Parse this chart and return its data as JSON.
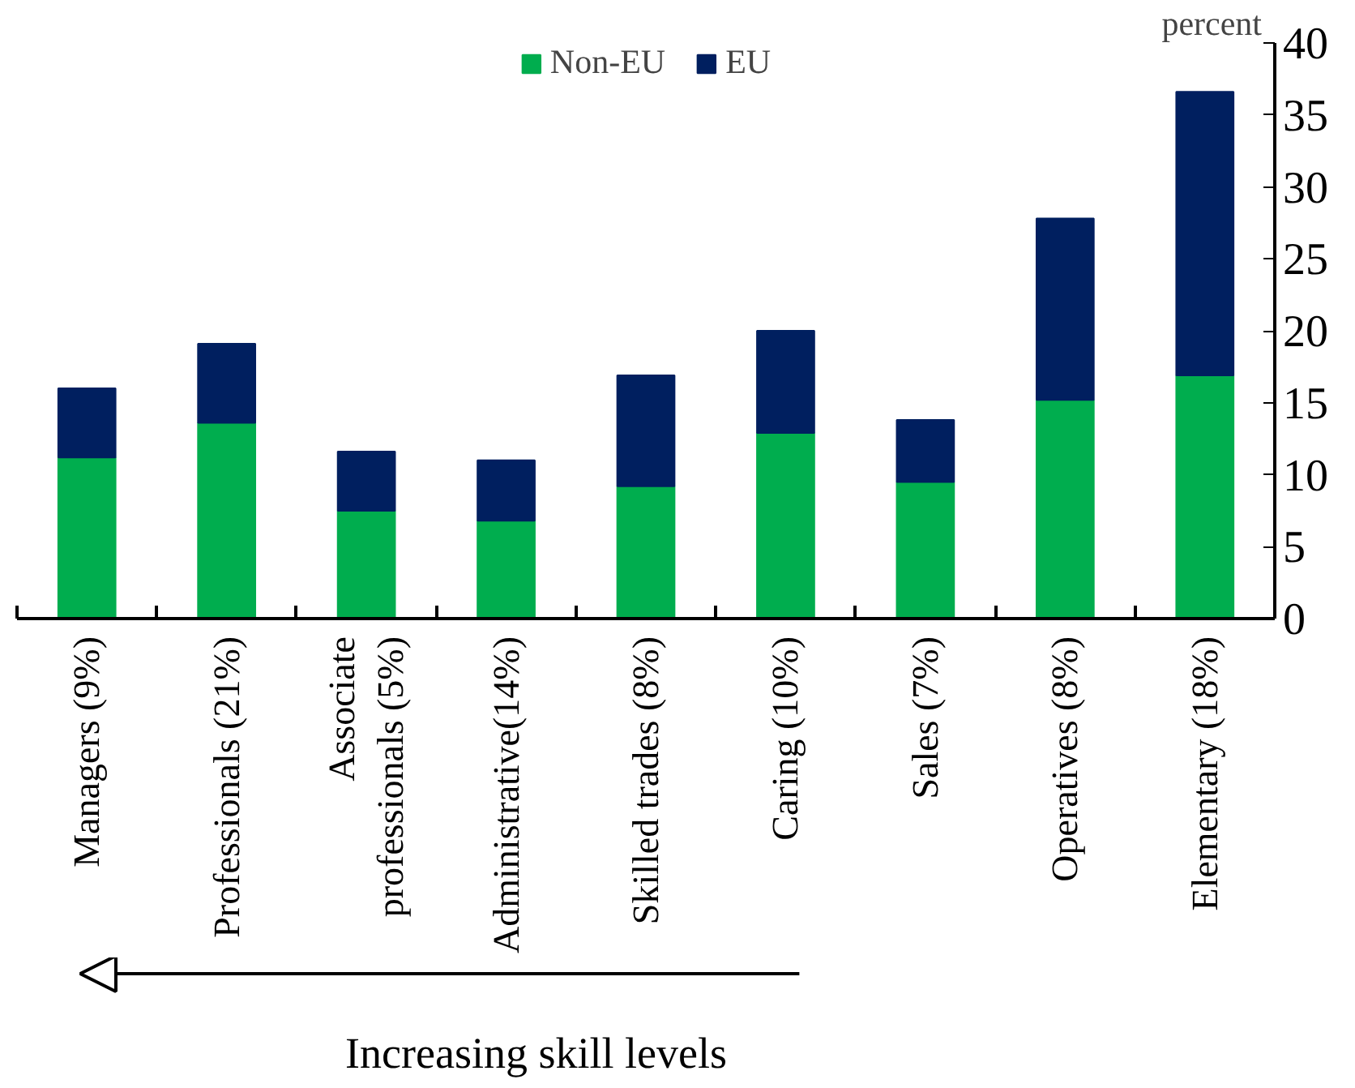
{
  "chart_data": {
    "type": "bar",
    "stacked": true,
    "categories": [
      "Managers (9%)",
      "Professionals (21%)",
      "Associate professionals (5%)",
      "Administrative(14%)",
      "Skilled trades (8%)",
      "Caring (10%)",
      "Sales (7%)",
      "Operatives (8%)",
      "Elementary (18%)"
    ],
    "series": [
      {
        "name": "Non-EU",
        "color": "#00ad4e",
        "values": [
          11.2,
          13.6,
          7.5,
          6.8,
          9.2,
          12.9,
          9.5,
          15.2,
          16.9
        ]
      },
      {
        "name": "EU",
        "color": "#001f5f",
        "values": [
          4.8,
          5.5,
          4.1,
          4.2,
          7.7,
          7.1,
          4.3,
          12.6,
          19.7
        ]
      }
    ],
    "ylabel": "percent",
    "ylim": [
      0,
      40
    ],
    "yticks": [
      0,
      5,
      10,
      15,
      20,
      25,
      30,
      35,
      40
    ],
    "grid": false,
    "legend": "top",
    "annotations": [
      "Increasing skill levels"
    ]
  }
}
